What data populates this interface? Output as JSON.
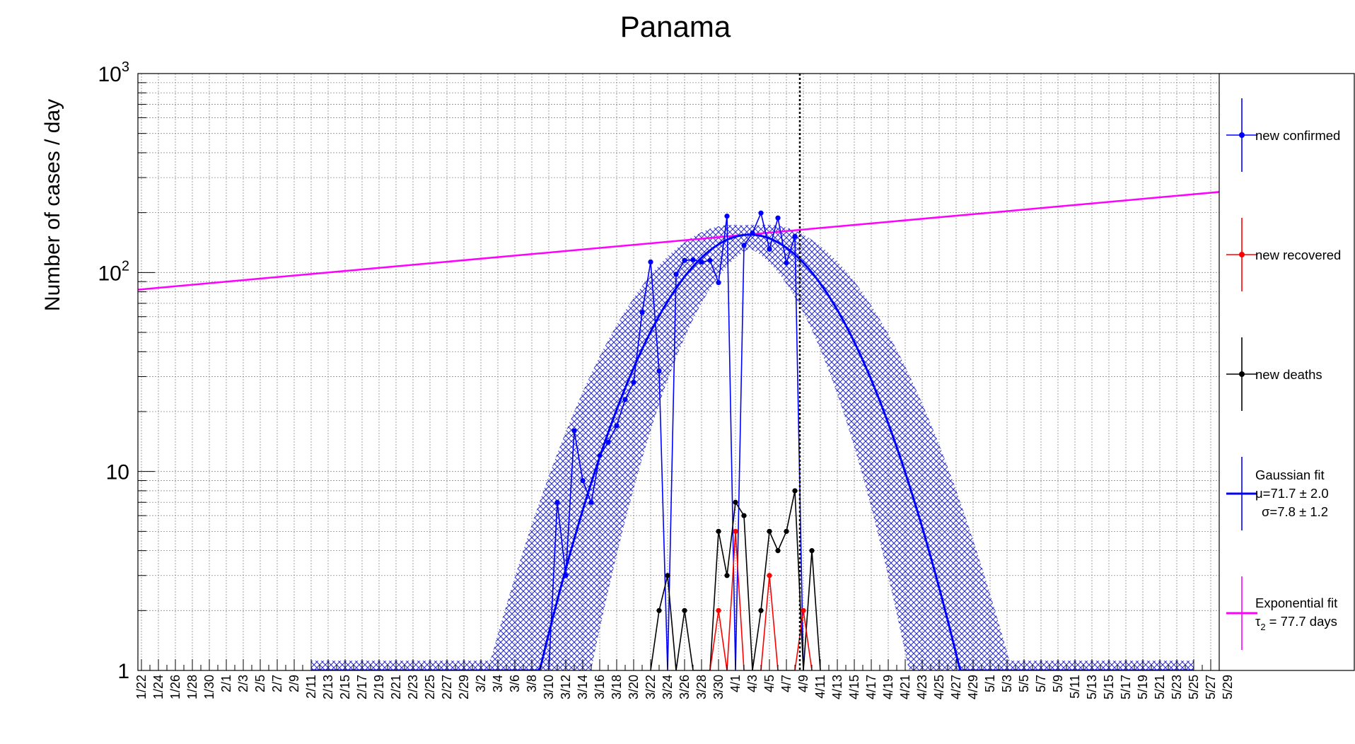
{
  "chart_data": {
    "type": "line",
    "title": "Panama",
    "ylabel": "Number of cases / day",
    "xlabel": "",
    "y_scale": "log",
    "ylim": [
      1,
      1000
    ],
    "y_tick_labels": [
      "1",
      "10",
      "10",
      "10"
    ],
    "y_tick_superscripts": [
      "",
      "",
      "2",
      "3"
    ],
    "x_ticks": [
      "1/22",
      "1/24",
      "1/26",
      "1/28",
      "1/30",
      "2/1",
      "2/3",
      "2/5",
      "2/7",
      "2/9",
      "2/11",
      "2/13",
      "2/15",
      "2/17",
      "2/19",
      "2/21",
      "2/23",
      "2/25",
      "2/27",
      "2/29",
      "3/2",
      "3/4",
      "3/6",
      "3/8",
      "3/10",
      "3/12",
      "3/14",
      "3/16",
      "3/18",
      "3/20",
      "3/22",
      "3/24",
      "3/26",
      "3/28",
      "3/30",
      "4/1",
      "4/3",
      "4/5",
      "4/7",
      "4/9",
      "4/11",
      "4/13",
      "4/15",
      "4/17",
      "4/19",
      "4/21",
      "4/23",
      "4/25",
      "4/27",
      "4/29",
      "5/1",
      "5/3",
      "5/5",
      "5/7",
      "5/9",
      "5/11",
      "5/13",
      "5/15",
      "5/17",
      "5/19",
      "5/21",
      "5/23",
      "5/25",
      "5/27",
      "5/29"
    ],
    "grid": true,
    "legend_position": "right",
    "series": [
      {
        "name": "new confirmed",
        "color": "#0000ff",
        "points": [
          [
            "3/10",
            1
          ],
          [
            "3/11",
            7
          ],
          [
            "3/12",
            3
          ],
          [
            "3/13",
            16
          ],
          [
            "3/14",
            9
          ],
          [
            "3/15",
            7
          ],
          [
            "3/16",
            12
          ],
          [
            "3/17",
            14
          ],
          [
            "3/18",
            17
          ],
          [
            "3/19",
            23
          ],
          [
            "3/20",
            28
          ],
          [
            "3/21",
            63
          ],
          [
            "3/22",
            113
          ],
          [
            "3/23",
            32
          ],
          [
            "3/24",
            1
          ],
          [
            "3/25",
            98
          ],
          [
            "3/26",
            115
          ],
          [
            "3/27",
            116
          ],
          [
            "3/28",
            113
          ],
          [
            "3/29",
            115
          ],
          [
            "3/30",
            89
          ],
          [
            "3/31",
            192
          ],
          [
            "4/1",
            1
          ],
          [
            "4/2",
            137
          ],
          [
            "4/3",
            158
          ],
          [
            "4/4",
            199
          ],
          [
            "4/5",
            131
          ],
          [
            "4/6",
            188
          ],
          [
            "4/7",
            112
          ],
          [
            "4/8",
            152
          ],
          [
            "4/9",
            1
          ]
        ]
      },
      {
        "name": "new recovered",
        "color": "#ff0000",
        "points": [
          [
            "3/29",
            1
          ],
          [
            "3/30",
            2
          ],
          [
            "3/31",
            1
          ],
          [
            "4/1",
            5
          ],
          [
            "4/2",
            1
          ],
          [
            "4/3",
            1
          ],
          [
            "4/4",
            1
          ],
          [
            "4/5",
            3
          ],
          [
            "4/6",
            1
          ],
          [
            "4/8",
            1
          ],
          [
            "4/9",
            2
          ],
          [
            "4/10",
            1
          ]
        ]
      },
      {
        "name": "new deaths",
        "color": "#000000",
        "points": [
          [
            "3/22",
            1
          ],
          [
            "3/23",
            2
          ],
          [
            "3/24",
            3
          ],
          [
            "3/25",
            1
          ],
          [
            "3/26",
            2
          ],
          [
            "3/27",
            1
          ],
          [
            "3/29",
            1
          ],
          [
            "3/30",
            5
          ],
          [
            "3/31",
            3
          ],
          [
            "4/1",
            7
          ],
          [
            "4/2",
            6
          ],
          [
            "4/3",
            1
          ],
          [
            "4/4",
            2
          ],
          [
            "4/5",
            5
          ],
          [
            "4/6",
            4
          ],
          [
            "4/7",
            5
          ],
          [
            "4/8",
            8
          ],
          [
            "4/9",
            1
          ],
          [
            "4/10",
            4
          ],
          [
            "4/11",
            1
          ]
        ]
      }
    ],
    "fits": [
      {
        "name": "Gaussian fit",
        "color": "#0000ff",
        "legend_lines": [
          "Gaussian fit",
          "μ=71.7 ± 2.0",
          "σ=7.8 ± 1.2"
        ],
        "mu_day_index": 71.7,
        "mu_error": 2.0,
        "sigma_days": 7.8,
        "sigma_error": 1.2,
        "peak_value": 155,
        "band_color": "#3333cc",
        "x_range": [
          "2/11",
          "5/25"
        ]
      },
      {
        "name": "Exponential fit",
        "color": "#ff00ff",
        "legend_lines": [
          "Exponential fit",
          "τ₂ = 77.7 days"
        ],
        "doubling_time_days": 77.7,
        "value_at_start": 82,
        "x_range": [
          "1/22",
          "5/31"
        ]
      }
    ],
    "vertical_marker": {
      "date": "4/9",
      "style": "dotted",
      "color": "#000000"
    },
    "legend": {
      "entries": [
        {
          "key": "confirmed",
          "lines": [
            "new confirmed"
          ],
          "color": "#0000ff",
          "marker": true
        },
        {
          "key": "recovered",
          "lines": [
            "new recovered"
          ],
          "color": "#ff0000",
          "marker": true
        },
        {
          "key": "deaths",
          "lines": [
            "new deaths"
          ],
          "color": "#000000",
          "marker": true
        },
        {
          "key": "gauss",
          "lines": [
            "Gaussian fit",
            "μ=71.7 ± 2.0",
            "σ=7.8 ± 1.2"
          ],
          "color": "#0000ff",
          "marker": false
        },
        {
          "key": "expo",
          "lines": [
            "Exponential fit",
            "τ",
            "2",
            " = 77.7 days"
          ],
          "color": "#ff00ff",
          "marker": false
        }
      ]
    }
  }
}
